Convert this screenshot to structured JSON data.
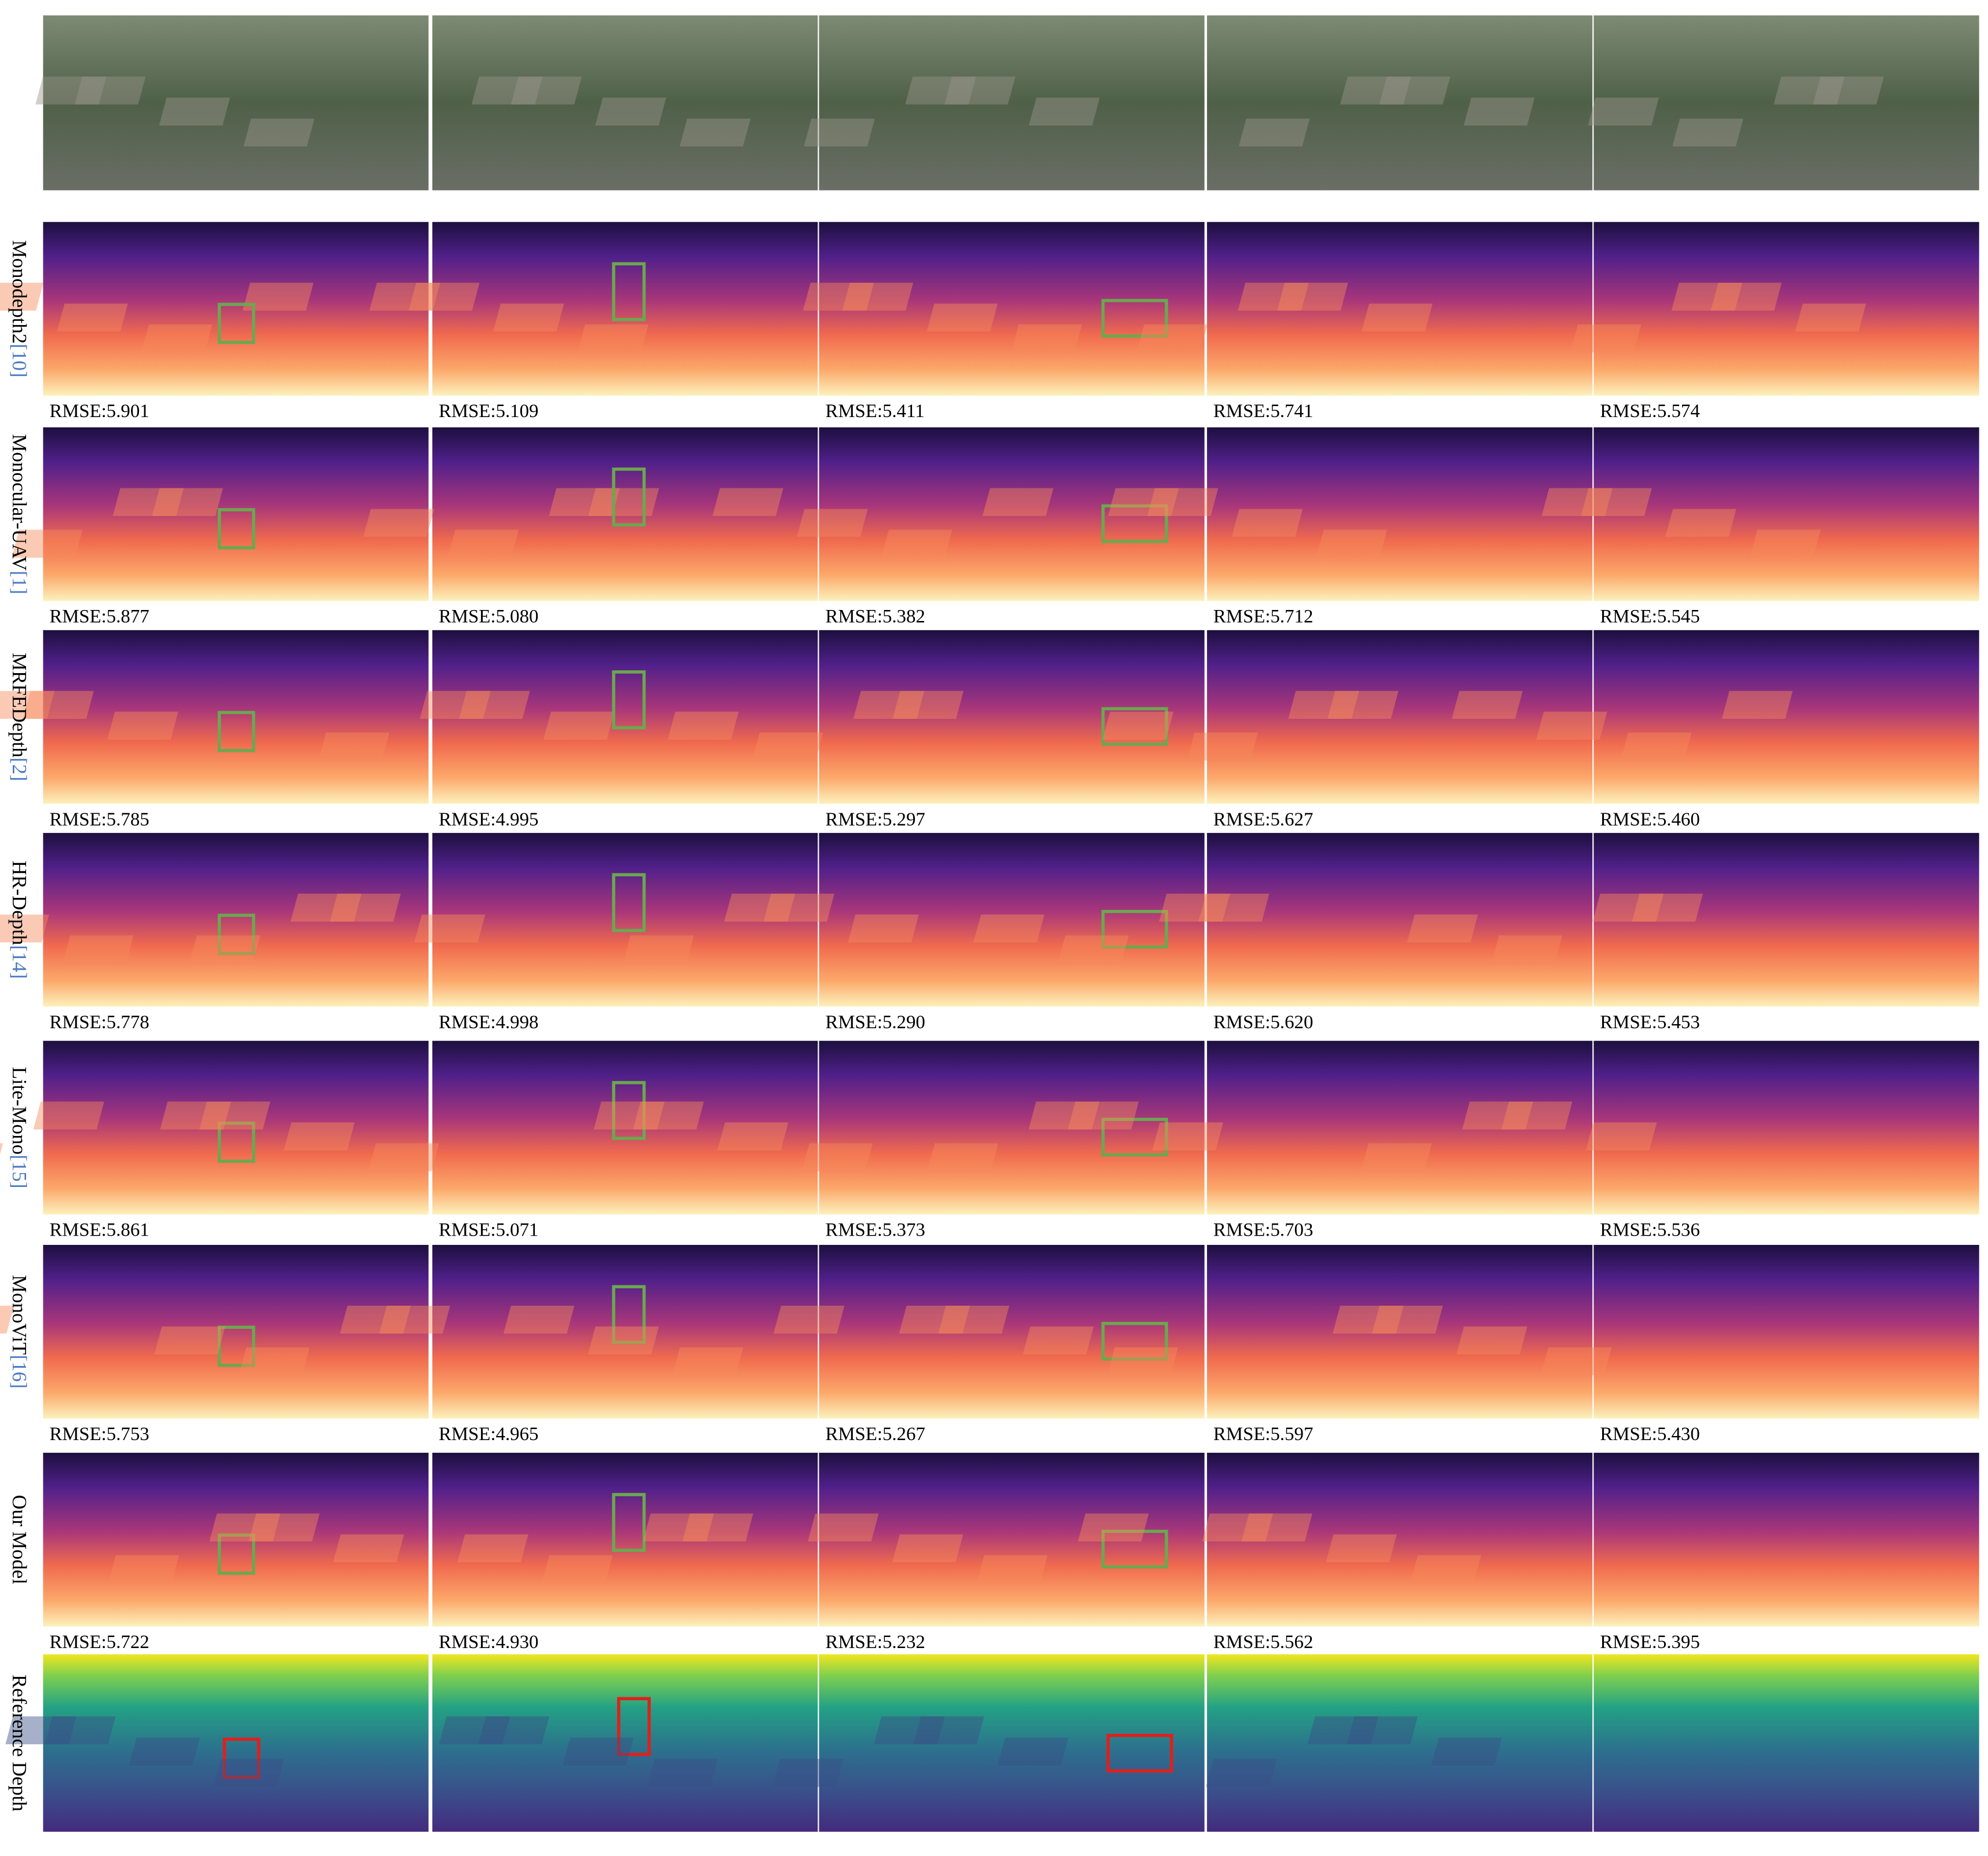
{
  "rows": [
    {
      "method": "Monodepth2",
      "citation": "[10]",
      "rmse": [
        "RMSE:5.901",
        "RMSE:5.109",
        "RMSE:5.411",
        "RMSE:5.741",
        "RMSE:5.574"
      ]
    },
    {
      "method": "Monocular-UAV",
      "citation": "[1]",
      "rmse": [
        "RMSE:5.877",
        "RMSE:5.080",
        "RMSE:5.382",
        "RMSE:5.712",
        "RMSE:5.545"
      ]
    },
    {
      "method": "MRFEDepth",
      "citation": "[2]",
      "rmse": [
        "RMSE:5.785",
        "RMSE:4.995",
        "RMSE:5.297",
        "RMSE:5.627",
        "RMSE:5.460"
      ]
    },
    {
      "method": "HR-Depth",
      "citation": "[14]",
      "rmse": [
        "RMSE:5.778",
        "RMSE:4.998",
        "RMSE:5.290",
        "RMSE:5.620",
        "RMSE:5.453"
      ]
    },
    {
      "method": "Lite-Mono",
      "citation": "[15]",
      "rmse": [
        "RMSE:5.861",
        "RMSE:5.071",
        "RMSE:5.373",
        "RMSE:5.703",
        "RMSE:5.536"
      ]
    },
    {
      "method": "MonoViT",
      "citation": "[16]",
      "rmse": [
        "RMSE:5.753",
        "RMSE:4.965",
        "RMSE:5.267",
        "RMSE:5.597",
        "RMSE:5.430"
      ]
    },
    {
      "method": "Our Model",
      "citation": null,
      "rmse": [
        "RMSE:5.722",
        "RMSE:4.930",
        "RMSE:5.232",
        "RMSE:5.562",
        "RMSE:5.395"
      ]
    }
  ],
  "reference": {
    "label": "Reference Depth"
  }
}
